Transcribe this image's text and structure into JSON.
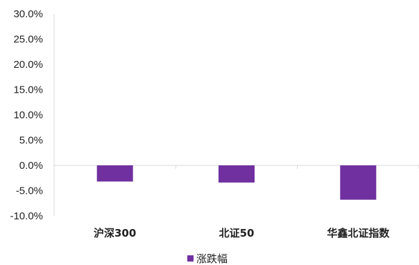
{
  "chart_data": {
    "type": "bar",
    "categories": [
      "沪深300",
      "北证50",
      "华鑫北证指数"
    ],
    "series": [
      {
        "name": "涨跌幅",
        "values": [
          -3.2,
          -3.4,
          -6.8
        ],
        "color": "#7030A0"
      }
    ],
    "ylim": [
      -10,
      30
    ],
    "yticks": [
      "30.0%",
      "25.0%",
      "20.0%",
      "15.0%",
      "10.0%",
      "5.0%",
      "0.0%",
      "-5.0%",
      "-10.0%"
    ],
    "grid": false,
    "legend_position": "bottom-left",
    "axis_color": "#d9d9d9"
  }
}
